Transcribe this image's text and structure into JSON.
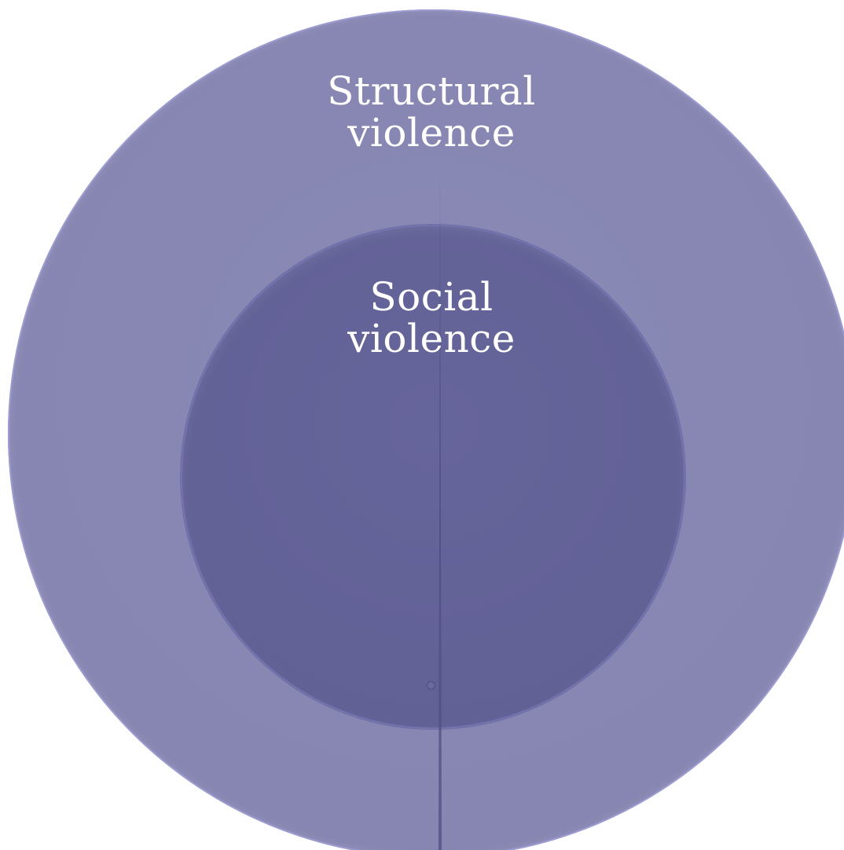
{
  "diagram": {
    "outer_ring": {
      "label_line1": "Structural",
      "label_line2": "violence",
      "color": "#8786b2"
    },
    "inner_circle": {
      "label_line1": "Social",
      "label_line2": "violence",
      "color": "#626196"
    },
    "divider_color": "#4f4e82"
  }
}
